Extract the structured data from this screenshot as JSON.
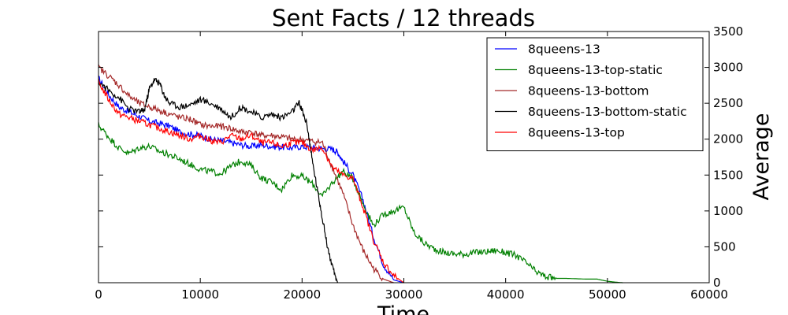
{
  "chart_data": {
    "type": "line",
    "title": "Sent Facts / 12 threads",
    "xlabel": "Time",
    "ylabel": "Average",
    "xlim": [
      0,
      60000
    ],
    "ylim": [
      0,
      3500
    ],
    "x_ticks": [
      0,
      10000,
      20000,
      30000,
      40000,
      50000,
      60000
    ],
    "y_ticks": [
      0,
      500,
      1000,
      1500,
      2000,
      2500,
      3000,
      3500
    ],
    "y_axis_side": "right",
    "grid": false,
    "legend_position": "top-right",
    "series": [
      {
        "name": "8queens-13",
        "color": "#0000ff",
        "points": [
          [
            0,
            2850
          ],
          [
            1000,
            2620
          ],
          [
            2000,
            2450
          ],
          [
            3000,
            2380
          ],
          [
            4000,
            2320
          ],
          [
            5000,
            2250
          ],
          [
            6000,
            2220
          ],
          [
            7000,
            2180
          ],
          [
            8000,
            2100
          ],
          [
            9000,
            2070
          ],
          [
            10000,
            2050
          ],
          [
            11000,
            2000
          ],
          [
            12000,
            1980
          ],
          [
            13000,
            1950
          ],
          [
            14000,
            1920
          ],
          [
            15000,
            1900
          ],
          [
            16000,
            1920
          ],
          [
            17000,
            1900
          ],
          [
            18000,
            1890
          ],
          [
            19000,
            1880
          ],
          [
            20000,
            1900
          ],
          [
            21000,
            1880
          ],
          [
            22000,
            1870
          ],
          [
            23000,
            1860
          ],
          [
            23500,
            1820
          ],
          [
            24000,
            1700
          ],
          [
            25000,
            1500
          ],
          [
            26000,
            1150
          ],
          [
            27000,
            650
          ],
          [
            28000,
            250
          ],
          [
            29000,
            40
          ],
          [
            30000,
            0
          ]
        ]
      },
      {
        "name": "8queens-13-top-static",
        "color": "#008000",
        "points": [
          [
            0,
            2200
          ],
          [
            1000,
            2030
          ],
          [
            2000,
            1880
          ],
          [
            3000,
            1800
          ],
          [
            4000,
            1880
          ],
          [
            5000,
            1900
          ],
          [
            6000,
            1830
          ],
          [
            7000,
            1780
          ],
          [
            8000,
            1720
          ],
          [
            9000,
            1650
          ],
          [
            10000,
            1580
          ],
          [
            11000,
            1550
          ],
          [
            12000,
            1520
          ],
          [
            13000,
            1620
          ],
          [
            14000,
            1700
          ],
          [
            15000,
            1630
          ],
          [
            16000,
            1460
          ],
          [
            17000,
            1400
          ],
          [
            18000,
            1300
          ],
          [
            19000,
            1500
          ],
          [
            20000,
            1480
          ],
          [
            21000,
            1380
          ],
          [
            22000,
            1200
          ],
          [
            23000,
            1400
          ],
          [
            24000,
            1550
          ],
          [
            25000,
            1450
          ],
          [
            26000,
            1100
          ],
          [
            27000,
            800
          ],
          [
            28000,
            950
          ],
          [
            29000,
            1000
          ],
          [
            30000,
            1050
          ],
          [
            31000,
            700
          ],
          [
            32000,
            550
          ],
          [
            33000,
            470
          ],
          [
            34000,
            420
          ],
          [
            35000,
            400
          ],
          [
            36000,
            400
          ],
          [
            37000,
            420
          ],
          [
            38000,
            430
          ],
          [
            39000,
            450
          ],
          [
            40000,
            420
          ],
          [
            41000,
            380
          ],
          [
            42000,
            280
          ],
          [
            43000,
            150
          ],
          [
            44000,
            80
          ],
          [
            45000,
            60
          ],
          [
            46000,
            60
          ],
          [
            47000,
            55
          ],
          [
            48000,
            50
          ],
          [
            49000,
            50
          ],
          [
            50000,
            20
          ],
          [
            51000,
            5
          ],
          [
            51500,
            0
          ]
        ]
      },
      {
        "name": "8queens-13-bottom",
        "color": "#a52a2a",
        "points": [
          [
            0,
            3000
          ],
          [
            1000,
            2880
          ],
          [
            2000,
            2750
          ],
          [
            3000,
            2600
          ],
          [
            4000,
            2500
          ],
          [
            5000,
            2450
          ],
          [
            6000,
            2400
          ],
          [
            7000,
            2350
          ],
          [
            8000,
            2300
          ],
          [
            9000,
            2280
          ],
          [
            10000,
            2200
          ],
          [
            11000,
            2180
          ],
          [
            12000,
            2180
          ],
          [
            13000,
            2150
          ],
          [
            14000,
            2100
          ],
          [
            15000,
            2100
          ],
          [
            16000,
            2050
          ],
          [
            17000,
            2050
          ],
          [
            18000,
            2030
          ],
          [
            19000,
            2000
          ],
          [
            20000,
            1990
          ],
          [
            21000,
            1970
          ],
          [
            22000,
            1950
          ],
          [
            23000,
            1600
          ],
          [
            24000,
            1250
          ],
          [
            25000,
            800
          ],
          [
            26000,
            450
          ],
          [
            27000,
            200
          ],
          [
            28000,
            50
          ],
          [
            29000,
            0
          ]
        ]
      },
      {
        "name": "8queens-13-bottom-static",
        "color": "#000000",
        "points": [
          [
            0,
            2800
          ],
          [
            1000,
            2680
          ],
          [
            2000,
            2580
          ],
          [
            3000,
            2420
          ],
          [
            4000,
            2380
          ],
          [
            4500,
            2400
          ],
          [
            5000,
            2700
          ],
          [
            5500,
            2830
          ],
          [
            6000,
            2780
          ],
          [
            6500,
            2600
          ],
          [
            7000,
            2500
          ],
          [
            8000,
            2450
          ],
          [
            9000,
            2480
          ],
          [
            10000,
            2550
          ],
          [
            11000,
            2500
          ],
          [
            12000,
            2430
          ],
          [
            13000,
            2300
          ],
          [
            14000,
            2450
          ],
          [
            15000,
            2380
          ],
          [
            16000,
            2300
          ],
          [
            17000,
            2350
          ],
          [
            18000,
            2300
          ],
          [
            19000,
            2380
          ],
          [
            19700,
            2500
          ],
          [
            20000,
            2400
          ],
          [
            20500,
            2200
          ],
          [
            21000,
            1700
          ],
          [
            21500,
            1300
          ],
          [
            22000,
            900
          ],
          [
            22500,
            500
          ],
          [
            23000,
            200
          ],
          [
            23500,
            0
          ]
        ]
      },
      {
        "name": "8queens-13-top",
        "color": "#ff0000",
        "points": [
          [
            0,
            2800
          ],
          [
            1000,
            2550
          ],
          [
            2000,
            2350
          ],
          [
            3000,
            2300
          ],
          [
            4000,
            2250
          ],
          [
            5000,
            2200
          ],
          [
            6000,
            2150
          ],
          [
            7000,
            2100
          ],
          [
            8000,
            2050
          ],
          [
            9000,
            2000
          ],
          [
            10000,
            2050
          ],
          [
            11000,
            1980
          ],
          [
            12000,
            1950
          ],
          [
            13000,
            2050
          ],
          [
            14000,
            2000
          ],
          [
            15000,
            2050
          ],
          [
            16000,
            1950
          ],
          [
            17000,
            1950
          ],
          [
            18000,
            1900
          ],
          [
            19000,
            1950
          ],
          [
            20000,
            1950
          ],
          [
            21000,
            1850
          ],
          [
            22000,
            1880
          ],
          [
            23000,
            1600
          ],
          [
            24000,
            1500
          ],
          [
            25000,
            1450
          ],
          [
            26000,
            1050
          ],
          [
            27000,
            600
          ],
          [
            28000,
            280
          ],
          [
            29000,
            100
          ],
          [
            30000,
            0
          ]
        ]
      }
    ]
  }
}
